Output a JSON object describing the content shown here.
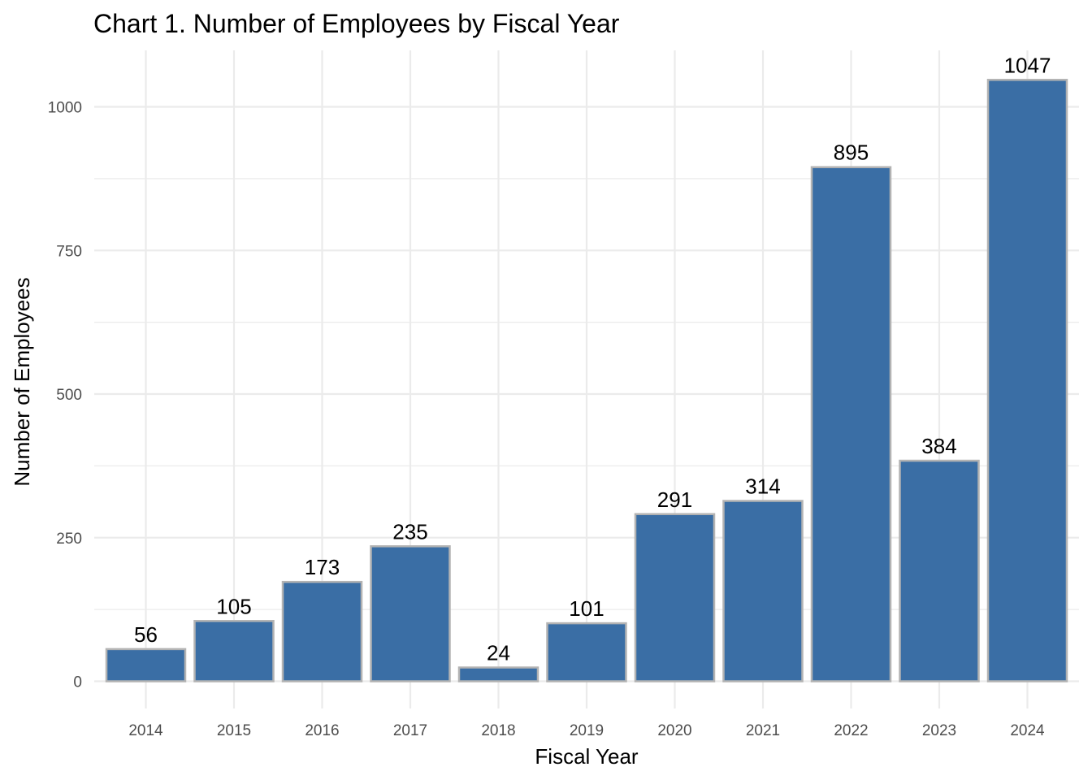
{
  "chart_data": {
    "type": "bar",
    "title": "Chart 1. Number of Employees by Fiscal Year",
    "xlabel": "Fiscal Year",
    "ylabel": "Number of Employees",
    "categories": [
      "2014",
      "2015",
      "2016",
      "2017",
      "2018",
      "2019",
      "2020",
      "2021",
      "2022",
      "2023",
      "2024"
    ],
    "values": [
      56,
      105,
      173,
      235,
      24,
      101,
      291,
      314,
      895,
      384,
      1047
    ],
    "data_labels": [
      "56",
      "105",
      "173",
      "235",
      "24",
      "101",
      "291",
      "314",
      "895",
      "384",
      "1047"
    ],
    "y_ticks": [
      0,
      250,
      500,
      750,
      1000
    ],
    "y_tick_labels": [
      "0",
      "250",
      "500",
      "750",
      "1000"
    ],
    "ylim": [
      0,
      1100
    ],
    "grid": true,
    "legend": "none",
    "bar_fill": "#3a6ea5",
    "bar_outline": "#b3b3b3",
    "grid_color": "#ebebeb"
  }
}
